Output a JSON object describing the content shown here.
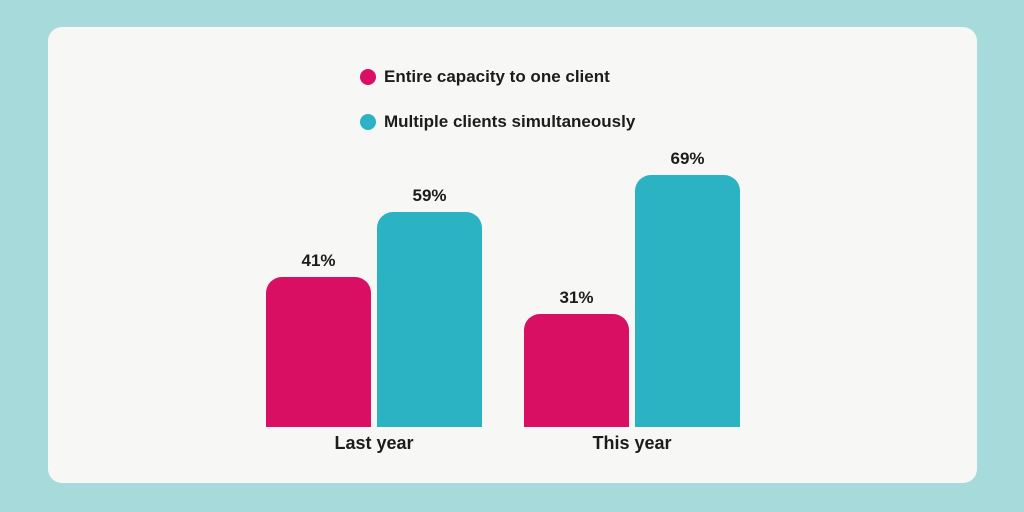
{
  "colors": {
    "background": "#A7DBDB",
    "card": "#F7F7F5",
    "text": "#1C1C1C"
  },
  "chart_data": {
    "type": "bar",
    "title": "",
    "categories": [
      "Last year",
      "This year"
    ],
    "series": [
      {
        "name": "Entire capacity to one client",
        "color": "#D90F63",
        "values": [
          41,
          31
        ]
      },
      {
        "name": "Multiple clients simultaneously",
        "color": "#2BB2C3",
        "values": [
          59,
          69
        ]
      }
    ],
    "value_labels": [
      [
        "41%",
        "31%"
      ],
      [
        "59%",
        "69%"
      ]
    ],
    "ylim": [
      0,
      100
    ],
    "xlabel": "",
    "ylabel": "",
    "grid": false,
    "axes_visible": false,
    "legend_position": "top-center"
  }
}
